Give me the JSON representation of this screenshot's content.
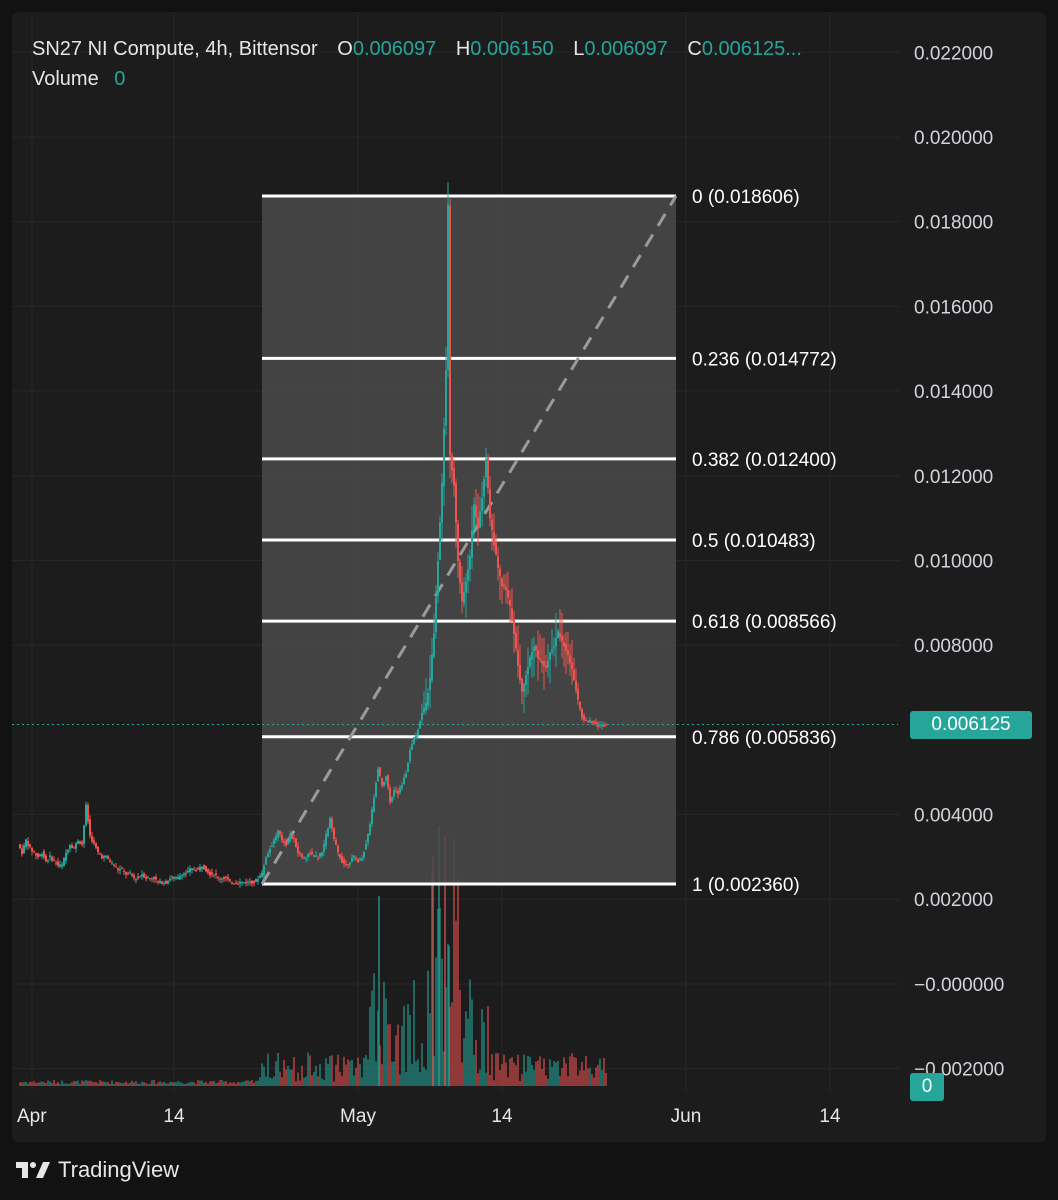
{
  "legend": {
    "symbol": "SN27 NI Compute, 4h, Bittensor",
    "open_label": "O",
    "open_value": "0.006097",
    "high_label": "H",
    "high_value": "0.006150",
    "low_label": "L",
    "low_value": "0.006097",
    "close_label": "C",
    "close_value": "0.006125...",
    "volume_label": "Volume",
    "volume_value": "0"
  },
  "price_tag": "0.006125",
  "volume_tag": "0",
  "footer": {
    "brand": "TradingView"
  },
  "colors": {
    "up": "#26a69a",
    "down": "#ef5350",
    "fib_band": "#4a4a4a",
    "background": "#1c1c1c"
  },
  "chart_data": {
    "type": "candlestick",
    "timeframe": "4h",
    "y_axis": {
      "ticks": [
        "0.022000",
        "0.020000",
        "0.018000",
        "0.016000",
        "0.014000",
        "0.012000",
        "0.010000",
        "0.008000",
        "0.004000",
        "0.002000",
        "−0.000000",
        "−0.002000"
      ],
      "tick_values": [
        0.022,
        0.02,
        0.018,
        0.016,
        0.014,
        0.012,
        0.01,
        0.008,
        0.004,
        0.002,
        0.0,
        -0.002
      ]
    },
    "x_axis": {
      "ticks": [
        "Apr",
        "14",
        "May",
        "14",
        "Jun",
        "14"
      ]
    },
    "fib_retracement": {
      "levels": [
        {
          "label": "0 (0.018606)",
          "ratio": 0,
          "price": 0.018606
        },
        {
          "label": "0.236 (0.014772)",
          "ratio": 0.236,
          "price": 0.014772
        },
        {
          "label": "0.382 (0.012400)",
          "ratio": 0.382,
          "price": 0.0124
        },
        {
          "label": "0.5 (0.010483)",
          "ratio": 0.5,
          "price": 0.010483
        },
        {
          "label": "0.618 (0.008566)",
          "ratio": 0.618,
          "price": 0.008566
        },
        {
          "label": "0.786 (0.005836)",
          "ratio": 0.786,
          "price": 0.005836
        },
        {
          "label": "1 (0.002360)",
          "ratio": 1,
          "price": 0.00236
        }
      ]
    },
    "last_price": 0.006125,
    "price_path": [
      [
        0,
        0.0033
      ],
      [
        4,
        0.0031
      ],
      [
        8,
        0.0034
      ],
      [
        12,
        0.0032
      ],
      [
        16,
        0.0031
      ],
      [
        20,
        0.003
      ],
      [
        24,
        0.0031
      ],
      [
        28,
        0.0029
      ],
      [
        32,
        0.003
      ],
      [
        36,
        0.0029
      ],
      [
        40,
        0.0028
      ],
      [
        44,
        0.0028
      ],
      [
        48,
        0.0031
      ],
      [
        52,
        0.0033
      ],
      [
        56,
        0.0032
      ],
      [
        60,
        0.0034
      ],
      [
        64,
        0.0033
      ],
      [
        68,
        0.0042
      ],
      [
        72,
        0.0035
      ],
      [
        76,
        0.0033
      ],
      [
        80,
        0.0031
      ],
      [
        84,
        0.003
      ],
      [
        88,
        0.003
      ],
      [
        92,
        0.0029
      ],
      [
        96,
        0.0028
      ],
      [
        100,
        0.0027
      ],
      [
        104,
        0.0027
      ],
      [
        108,
        0.0026
      ],
      [
        112,
        0.0026
      ],
      [
        116,
        0.0025
      ],
      [
        120,
        0.0025
      ],
      [
        124,
        0.0026
      ],
      [
        128,
        0.0025
      ],
      [
        132,
        0.0025
      ],
      [
        136,
        0.0025
      ],
      [
        140,
        0.0024
      ],
      [
        144,
        0.0024
      ],
      [
        148,
        0.0024
      ],
      [
        152,
        0.0025
      ],
      [
        156,
        0.0025
      ],
      [
        160,
        0.0025
      ],
      [
        164,
        0.0026
      ],
      [
        168,
        0.0026
      ],
      [
        172,
        0.0027
      ],
      [
        176,
        0.0027
      ],
      [
        180,
        0.0027
      ],
      [
        184,
        0.0028
      ],
      [
        188,
        0.0027
      ],
      [
        192,
        0.0026
      ],
      [
        196,
        0.0026
      ],
      [
        200,
        0.0025
      ],
      [
        204,
        0.0025
      ],
      [
        208,
        0.0025
      ],
      [
        212,
        0.0024
      ],
      [
        216,
        0.0024
      ],
      [
        220,
        0.0024
      ],
      [
        224,
        0.0024
      ],
      [
        228,
        0.0024
      ],
      [
        232,
        0.0024
      ],
      [
        236,
        0.0024
      ],
      [
        240,
        0.0025
      ],
      [
        244,
        0.0026
      ],
      [
        248,
        0.003
      ],
      [
        252,
        0.0032
      ],
      [
        256,
        0.0034
      ],
      [
        260,
        0.0036
      ],
      [
        264,
        0.0034
      ],
      [
        268,
        0.0033
      ],
      [
        272,
        0.0035
      ],
      [
        276,
        0.0034
      ],
      [
        280,
        0.0031
      ],
      [
        284,
        0.003
      ],
      [
        288,
        0.003
      ],
      [
        292,
        0.0031
      ],
      [
        296,
        0.003
      ],
      [
        300,
        0.003
      ],
      [
        304,
        0.0031
      ],
      [
        308,
        0.0035
      ],
      [
        312,
        0.0039
      ],
      [
        316,
        0.0034
      ],
      [
        320,
        0.0031
      ],
      [
        324,
        0.0029
      ],
      [
        328,
        0.0028
      ],
      [
        332,
        0.0029
      ],
      [
        336,
        0.003
      ],
      [
        340,
        0.0029
      ],
      [
        344,
        0.003
      ],
      [
        348,
        0.0033
      ],
      [
        352,
        0.0038
      ],
      [
        356,
        0.0044
      ],
      [
        360,
        0.0051
      ],
      [
        364,
        0.0047
      ],
      [
        368,
        0.0049
      ],
      [
        372,
        0.0043
      ],
      [
        376,
        0.0046
      ],
      [
        380,
        0.0045
      ],
      [
        384,
        0.0047
      ],
      [
        388,
        0.005
      ],
      [
        392,
        0.0055
      ],
      [
        396,
        0.0058
      ],
      [
        400,
        0.006
      ],
      [
        404,
        0.0064
      ],
      [
        408,
        0.0066
      ],
      [
        412,
        0.0072
      ],
      [
        416,
        0.0083
      ],
      [
        420,
        0.01
      ],
      [
        424,
        0.0118
      ],
      [
        428,
        0.0145
      ],
      [
        430,
        0.0184
      ],
      [
        432,
        0.0125
      ],
      [
        436,
        0.0118
      ],
      [
        440,
        0.01
      ],
      [
        444,
        0.009
      ],
      [
        448,
        0.0095
      ],
      [
        452,
        0.0101
      ],
      [
        456,
        0.0113
      ],
      [
        460,
        0.0108
      ],
      [
        464,
        0.0115
      ],
      [
        468,
        0.0124
      ],
      [
        472,
        0.011
      ],
      [
        476,
        0.0104
      ],
      [
        480,
        0.0098
      ],
      [
        484,
        0.0094
      ],
      [
        488,
        0.0093
      ],
      [
        492,
        0.0089
      ],
      [
        496,
        0.0083
      ],
      [
        500,
        0.0075
      ],
      [
        504,
        0.0069
      ],
      [
        508,
        0.0073
      ],
      [
        512,
        0.0077
      ],
      [
        516,
        0.008
      ],
      [
        520,
        0.0077
      ],
      [
        524,
        0.0076
      ],
      [
        528,
        0.0075
      ],
      [
        532,
        0.0078
      ],
      [
        536,
        0.008
      ],
      [
        540,
        0.0083
      ],
      [
        544,
        0.0081
      ],
      [
        548,
        0.0079
      ],
      [
        552,
        0.0076
      ],
      [
        556,
        0.0072
      ],
      [
        560,
        0.0067
      ],
      [
        564,
        0.0063
      ],
      [
        568,
        0.0062
      ],
      [
        572,
        0.0062
      ],
      [
        576,
        0.0062
      ],
      [
        580,
        0.0061
      ],
      [
        584,
        0.0061
      ],
      [
        588,
        0.0061
      ]
    ]
  }
}
